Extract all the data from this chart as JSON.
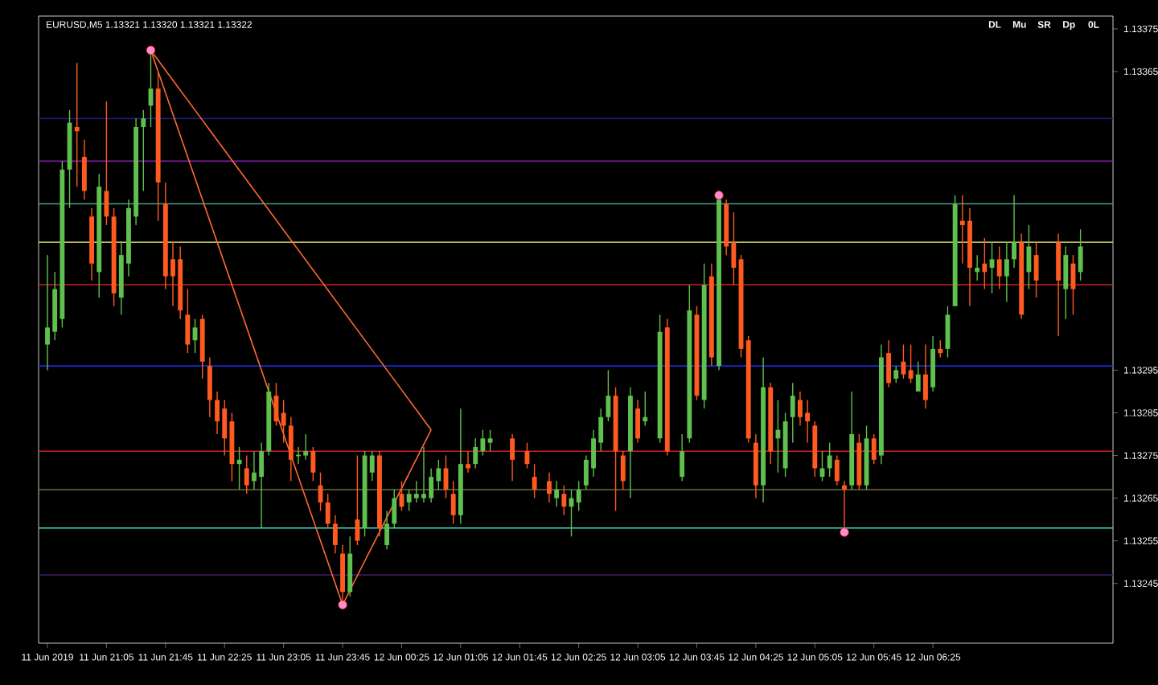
{
  "chart_data": {
    "type": "candlestick",
    "title": "EURUSD,M5  1.13321 1.13320 1.13321 1.13322",
    "x": [
      "2019-06-11T20:25",
      "2019-06-11T20:30",
      "2019-06-11T20:35",
      "2019-06-11T20:40",
      "2019-06-11T20:45",
      "2019-06-11T20:50",
      "2019-06-11T20:55",
      "2019-06-11T21:00",
      "2019-06-11T21:05",
      "2019-06-11T21:10",
      "2019-06-11T21:15",
      "2019-06-11T21:20",
      "2019-06-11T21:25",
      "2019-06-11T21:30",
      "2019-06-11T21:35",
      "2019-06-11T21:40",
      "2019-06-11T21:45",
      "2019-06-11T21:50",
      "2019-06-11T21:55",
      "2019-06-11T22:00",
      "2019-06-11T22:05",
      "2019-06-11T22:10",
      "2019-06-11T22:15",
      "2019-06-11T22:20",
      "2019-06-11T22:25",
      "2019-06-11T22:30",
      "2019-06-11T22:35",
      "2019-06-11T22:40",
      "2019-06-11T22:45",
      "2019-06-11T22:50",
      "2019-06-11T22:55",
      "2019-06-11T23:00",
      "2019-06-11T23:05",
      "2019-06-11T23:10",
      "2019-06-11T23:15",
      "2019-06-11T23:20",
      "2019-06-11T23:25",
      "2019-06-11T23:30",
      "2019-06-11T23:35",
      "2019-06-11T23:40",
      "2019-06-11T23:45",
      "2019-06-11T23:50",
      "2019-06-11T23:55",
      "2019-06-12T00:00",
      "2019-06-12T00:05",
      "2019-06-12T00:10",
      "2019-06-12T00:15",
      "2019-06-12T00:20",
      "2019-06-12T00:25",
      "2019-06-12T00:30",
      "2019-06-12T00:35",
      "2019-06-12T00:40",
      "2019-06-12T00:45",
      "2019-06-12T00:50",
      "2019-06-12T00:55",
      "2019-06-12T01:00",
      "2019-06-12T01:05",
      "2019-06-12T01:10",
      "2019-06-12T01:15",
      "2019-06-12T01:20",
      "2019-06-12T01:25",
      "2019-06-12T01:40",
      "2019-06-12T01:50",
      "2019-06-12T01:55",
      "2019-06-12T02:05",
      "2019-06-12T02:10",
      "2019-06-12T02:15",
      "2019-06-12T02:20",
      "2019-06-12T02:25",
      "2019-06-12T02:30",
      "2019-06-12T02:35",
      "2019-06-12T02:40",
      "2019-06-12T02:45",
      "2019-06-12T02:50",
      "2019-06-12T02:55",
      "2019-06-12T03:00",
      "2019-06-12T03:05",
      "2019-06-12T03:10",
      "2019-06-12T03:20",
      "2019-06-12T03:25",
      "2019-06-12T03:35",
      "2019-06-12T03:40",
      "2019-06-12T03:45",
      "2019-06-12T03:50",
      "2019-06-12T03:55",
      "2019-06-12T04:00",
      "2019-06-12T04:05",
      "2019-06-12T04:10",
      "2019-06-12T04:15",
      "2019-06-12T04:20",
      "2019-06-12T04:25",
      "2019-06-12T04:30",
      "2019-06-12T04:35",
      "2019-06-12T04:40",
      "2019-06-12T04:45",
      "2019-06-12T04:50",
      "2019-06-12T04:55",
      "2019-06-12T05:00",
      "2019-06-12T05:05",
      "2019-06-12T05:10",
      "2019-06-12T05:15",
      "2019-06-12T05:20",
      "2019-06-12T05:25",
      "2019-06-12T05:30",
      "2019-06-12T05:35",
      "2019-06-12T05:40",
      "2019-06-12T05:45",
      "2019-06-12T05:50",
      "2019-06-12T05:55",
      "2019-06-12T06:00",
      "2019-06-12T06:05",
      "2019-06-12T06:10",
      "2019-06-12T06:15",
      "2019-06-12T06:20",
      "2019-06-12T06:25",
      "2019-06-12T06:30",
      "2019-06-12T06:35",
      "2019-06-12T06:40",
      "2019-06-12T06:45",
      "2019-06-12T06:50",
      "2019-06-12T06:55",
      "2019-06-12T07:00",
      "2019-06-12T07:05",
      "2019-06-12T07:10",
      "2019-06-12T07:15",
      "2019-06-12T07:20",
      "2019-06-12T07:25",
      "2019-06-12T07:30",
      "2019-06-12T07:35",
      "2019-06-12T07:50",
      "2019-06-12T07:55",
      "2019-06-12T08:00",
      "2019-06-12T08:05"
    ],
    "ohlc": [
      [
        1.13301,
        1.13322,
        1.13295,
        1.13305
      ],
      [
        1.13304,
        1.13318,
        1.13302,
        1.13314
      ],
      [
        1.13307,
        1.13344,
        1.13305,
        1.13342
      ],
      [
        1.13342,
        1.13356,
        1.13333,
        1.13353
      ],
      [
        1.13352,
        1.13367,
        1.13338,
        1.13351
      ],
      [
        1.13345,
        1.13349,
        1.13335,
        1.13337
      ],
      [
        1.13331,
        1.13333,
        1.13316,
        1.1332
      ],
      [
        1.13318,
        1.13341,
        1.13312,
        1.13338
      ],
      [
        1.13337,
        1.13358,
        1.13329,
        1.13331
      ],
      [
        1.13331,
        1.13333,
        1.1331,
        1.13313
      ],
      [
        1.13312,
        1.13325,
        1.13308,
        1.13322
      ],
      [
        1.1332,
        1.13335,
        1.13317,
        1.13333
      ],
      [
        1.13331,
        1.13354,
        1.13329,
        1.13352
      ],
      [
        1.13352,
        1.13356,
        1.13337,
        1.13354
      ],
      [
        1.13357,
        1.1337,
        1.13352,
        1.13361
      ],
      [
        1.13361,
        1.13365,
        1.1333,
        1.13339
      ],
      [
        1.13334,
        1.13339,
        1.13314,
        1.13317
      ],
      [
        1.13321,
        1.13325,
        1.1331,
        1.13317
      ],
      [
        1.13321,
        1.13324,
        1.13307,
        1.13309
      ],
      [
        1.13308,
        1.13314,
        1.13299,
        1.13301
      ],
      [
        1.13302,
        1.13307,
        1.13299,
        1.13305
      ],
      [
        1.13307,
        1.13308,
        1.13293,
        1.13297
      ],
      [
        1.13296,
        1.13298,
        1.13284,
        1.13288
      ],
      [
        1.13288,
        1.1329,
        1.1328,
        1.13283
      ],
      [
        1.13286,
        1.13288,
        1.13275,
        1.13279
      ],
      [
        1.13283,
        1.13285,
        1.13269,
        1.13273
      ],
      [
        1.13273,
        1.13277,
        1.13267,
        1.13274
      ],
      [
        1.13272,
        1.13275,
        1.13266,
        1.13268
      ],
      [
        1.13269,
        1.13276,
        1.13267,
        1.13271
      ],
      [
        1.1327,
        1.13278,
        1.13258,
        1.13276
      ],
      [
        1.13276,
        1.13292,
        1.13275,
        1.1329
      ],
      [
        1.13289,
        1.13292,
        1.13282,
        1.13283
      ],
      [
        1.13285,
        1.13288,
        1.13278,
        1.13282
      ],
      [
        1.13282,
        1.13284,
        1.13269,
        1.13274
      ],
      [
        1.13275,
        1.13277,
        1.13273,
        1.13275
      ],
      [
        1.13275,
        1.1328,
        1.13274,
        1.13276
      ],
      [
        1.13276,
        1.13277,
        1.13269,
        1.13271
      ],
      [
        1.13268,
        1.13271,
        1.13262,
        1.13264
      ],
      [
        1.13264,
        1.13266,
        1.13258,
        1.13259
      ],
      [
        1.13259,
        1.13261,
        1.13252,
        1.13254
      ],
      [
        1.13252,
        1.13254,
        1.1324,
        1.13243
      ],
      [
        1.13243,
        1.13256,
        1.13242,
        1.13252
      ],
      [
        1.1326,
        1.13275,
        1.13254,
        1.13255
      ],
      [
        1.13258,
        1.13276,
        1.13256,
        1.13275
      ],
      [
        1.13271,
        1.13276,
        1.13269,
        1.13275
      ],
      [
        1.13275,
        1.13276,
        1.13256,
        1.13258
      ],
      [
        1.13254,
        1.13262,
        1.13253,
        1.13259
      ],
      [
        1.13259,
        1.13267,
        1.13258,
        1.13265
      ],
      [
        1.13266,
        1.13269,
        1.13262,
        1.13263
      ],
      [
        1.13264,
        1.13267,
        1.13262,
        1.13266
      ],
      [
        1.13265,
        1.13269,
        1.13264,
        1.13266
      ],
      [
        1.13265,
        1.13277,
        1.13264,
        1.13266
      ],
      [
        1.13265,
        1.13272,
        1.13264,
        1.1327
      ],
      [
        1.13269,
        1.13274,
        1.13267,
        1.13272
      ],
      [
        1.13272,
        1.13275,
        1.13265,
        1.13267
      ],
      [
        1.13266,
        1.13269,
        1.13259,
        1.13261
      ],
      [
        1.13261,
        1.13286,
        1.13259,
        1.13273
      ],
      [
        1.13273,
        1.13276,
        1.13271,
        1.13272
      ],
      [
        1.13273,
        1.13279,
        1.13272,
        1.13277
      ],
      [
        1.13276,
        1.13281,
        1.13275,
        1.13279
      ],
      [
        1.13278,
        1.13281,
        1.13276,
        1.13279
      ],
      [
        1.13279,
        1.1328,
        1.13269,
        1.13274
      ],
      [
        1.13276,
        1.13278,
        1.13272,
        1.13273
      ],
      [
        1.1327,
        1.13273,
        1.13265,
        1.13267
      ],
      [
        1.13269,
        1.13271,
        1.13264,
        1.13266
      ],
      [
        1.13265,
        1.13269,
        1.13263,
        1.13267
      ],
      [
        1.13266,
        1.13268,
        1.13261,
        1.13263
      ],
      [
        1.13263,
        1.13267,
        1.13256,
        1.13265
      ],
      [
        1.13264,
        1.13269,
        1.13262,
        1.13267
      ],
      [
        1.13268,
        1.13275,
        1.13267,
        1.13274
      ],
      [
        1.13272,
        1.13281,
        1.1327,
        1.13279
      ],
      [
        1.13278,
        1.13286,
        1.13276,
        1.13284
      ],
      [
        1.13284,
        1.13295,
        1.13283,
        1.13289
      ],
      [
        1.13289,
        1.13291,
        1.13262,
        1.13276
      ],
      [
        1.13275,
        1.13276,
        1.13267,
        1.13269
      ],
      [
        1.13276,
        1.13291,
        1.13265,
        1.13289
      ],
      [
        1.13286,
        1.13288,
        1.13278,
        1.13279
      ],
      [
        1.13283,
        1.1329,
        1.13282,
        1.13284
      ],
      [
        1.13279,
        1.13308,
        1.13278,
        1.13304
      ],
      [
        1.13305,
        1.13307,
        1.13275,
        1.13276
      ],
      [
        1.1327,
        1.1328,
        1.13269,
        1.13276
      ],
      [
        1.13279,
        1.13315,
        1.13278,
        1.13309
      ],
      [
        1.13308,
        1.1331,
        1.13288,
        1.13289
      ],
      [
        1.13288,
        1.1332,
        1.13286,
        1.13315
      ],
      [
        1.13317,
        1.1332,
        1.13296,
        1.13298
      ],
      [
        1.13296,
        1.13336,
        1.13295,
        1.13335
      ],
      [
        1.13334,
        1.13335,
        1.13322,
        1.13324
      ],
      [
        1.13325,
        1.13332,
        1.13315,
        1.13319
      ],
      [
        1.13321,
        1.13322,
        1.13298,
        1.133
      ],
      [
        1.13302,
        1.13303,
        1.13278,
        1.13279
      ],
      [
        1.13278,
        1.1328,
        1.13265,
        1.13268
      ],
      [
        1.13268,
        1.13298,
        1.13264,
        1.13291
      ],
      [
        1.13291,
        1.13292,
        1.13273,
        1.13276
      ],
      [
        1.13279,
        1.13288,
        1.13271,
        1.13281
      ],
      [
        1.13272,
        1.13285,
        1.1327,
        1.13283
      ],
      [
        1.13284,
        1.13292,
        1.13278,
        1.13289
      ],
      [
        1.13288,
        1.1329,
        1.13282,
        1.13284
      ],
      [
        1.13285,
        1.13288,
        1.13278,
        1.13283
      ],
      [
        1.13282,
        1.13283,
        1.1327,
        1.13272
      ],
      [
        1.1327,
        1.13276,
        1.13269,
        1.13272
      ],
      [
        1.13272,
        1.13278,
        1.1327,
        1.13275
      ],
      [
        1.13274,
        1.13275,
        1.13268,
        1.13269
      ],
      [
        1.13268,
        1.13269,
        1.13257,
        1.13267
      ],
      [
        1.13268,
        1.1329,
        1.13267,
        1.1328
      ],
      [
        1.13278,
        1.1328,
        1.13267,
        1.13268
      ],
      [
        1.13268,
        1.13282,
        1.13267,
        1.13279
      ],
      [
        1.13279,
        1.1328,
        1.13273,
        1.13274
      ],
      [
        1.13275,
        1.13301,
        1.13273,
        1.13298
      ],
      [
        1.13299,
        1.13302,
        1.13291,
        1.13292
      ],
      [
        1.13293,
        1.13296,
        1.13292,
        1.13295
      ],
      [
        1.13297,
        1.13301,
        1.13293,
        1.13294
      ],
      [
        1.13295,
        1.13301,
        1.13292,
        1.13293
      ],
      [
        1.1329,
        1.13297,
        1.1329,
        1.13294
      ],
      [
        1.13294,
        1.13301,
        1.13286,
        1.13288
      ],
      [
        1.13291,
        1.13303,
        1.1329,
        1.133
      ],
      [
        1.133,
        1.13302,
        1.13298,
        1.13299
      ],
      [
        1.133,
        1.1331,
        1.13298,
        1.13308
      ],
      [
        1.1331,
        1.13336,
        1.1331,
        1.13334
      ],
      [
        1.1333,
        1.13336,
        1.1332,
        1.13329
      ],
      [
        1.1333,
        1.13333,
        1.1331,
        1.13319
      ],
      [
        1.13318,
        1.13322,
        1.13316,
        1.13319
      ],
      [
        1.1332,
        1.13326,
        1.13314,
        1.13318
      ],
      [
        1.13319,
        1.13325,
        1.13313,
        1.13321
      ],
      [
        1.13321,
        1.13324,
        1.13314,
        1.13317
      ],
      [
        1.13317,
        1.13325,
        1.13311,
        1.13321
      ],
      [
        1.13321,
        1.13336,
        1.13319,
        1.13325
      ],
      [
        1.13325,
        1.13327,
        1.13307,
        1.13308
      ],
      [
        1.13318,
        1.13329,
        1.13314,
        1.13324
      ],
      [
        1.13322,
        1.13325,
        1.13312,
        1.13316
      ],
      [
        1.13325,
        1.13327,
        1.13303,
        1.13316
      ],
      [
        1.13314,
        1.13324,
        1.13307,
        1.13322
      ],
      [
        1.1332,
        1.13322,
        1.13308,
        1.13314
      ],
      [
        1.13318,
        1.13328,
        1.13316,
        1.13324
      ]
    ],
    "colors": [
      "#5fbf4f",
      "#5fbf4f",
      "#5fbf4f",
      "#5fbf4f",
      "#ff5a1f",
      "#ff5a1f",
      "#ff5a1f",
      "#5fbf4f",
      "#ff5a1f",
      "#ff5a1f",
      "#5fbf4f",
      "#5fbf4f",
      "#5fbf4f",
      "#5fbf4f",
      "#5fbf4f",
      "#ff5a1f",
      "#ff5a1f",
      "#ff5a1f",
      "#ff5a1f",
      "#ff5a1f",
      "#5fbf4f",
      "#ff5a1f",
      "#ff5a1f",
      "#ff5a1f",
      "#ff5a1f",
      "#ff5a1f",
      "#5fbf4f",
      "#ff5a1f",
      "#5fbf4f",
      "#5fbf4f",
      "#5fbf4f",
      "#ff5a1f",
      "#ff5a1f",
      "#ff5a1f",
      "#5fbf4f",
      "#5fbf4f",
      "#ff5a1f",
      "#ff5a1f",
      "#ff5a1f",
      "#ff5a1f",
      "#ff5a1f",
      "#5fbf4f",
      "#ff5a1f",
      "#5fbf4f",
      "#5fbf4f",
      "#ff5a1f",
      "#5fbf4f",
      "#5fbf4f",
      "#ff5a1f",
      "#5fbf4f",
      "#5fbf4f",
      "#5fbf4f",
      "#5fbf4f",
      "#5fbf4f",
      "#ff5a1f",
      "#ff5a1f",
      "#5fbf4f",
      "#ff5a1f",
      "#5fbf4f",
      "#5fbf4f",
      "#5fbf4f",
      "#ff5a1f",
      "#ff5a1f",
      "#ff5a1f",
      "#ff5a1f",
      "#5fbf4f",
      "#ff5a1f",
      "#5fbf4f",
      "#5fbf4f",
      "#5fbf4f",
      "#5fbf4f",
      "#5fbf4f",
      "#5fbf4f",
      "#ff5a1f",
      "#ff5a1f",
      "#5fbf4f",
      "#ff5a1f",
      "#5fbf4f",
      "#5fbf4f",
      "#ff5a1f",
      "#5fbf4f",
      "#5fbf4f",
      "#ff5a1f",
      "#5fbf4f",
      "#ff5a1f",
      "#5fbf4f",
      "#ff5a1f",
      "#ff5a1f",
      "#ff5a1f",
      "#ff5a1f",
      "#ff5a1f",
      "#5fbf4f",
      "#ff5a1f",
      "#5fbf4f",
      "#5fbf4f",
      "#5fbf4f",
      "#ff5a1f",
      "#ff5a1f",
      "#ff5a1f",
      "#5fbf4f",
      "#5fbf4f",
      "#ff5a1f",
      "#ff5a1f",
      "#5fbf4f",
      "#ff5a1f",
      "#5fbf4f",
      "#ff5a1f",
      "#5fbf4f",
      "#ff5a1f",
      "#5fbf4f",
      "#ff5a1f",
      "#ff5a1f",
      "#5fbf4f",
      "#ff5a1f",
      "#5fbf4f",
      "#ff5a1f",
      "#5fbf4f",
      "#5fbf4f",
      "#ff5a1f",
      "#ff5a1f",
      "#5fbf4f",
      "#ff5a1f",
      "#5fbf4f",
      "#ff5a1f",
      "#5fbf4f",
      "#5fbf4f",
      "#ff5a1f",
      "#5fbf4f",
      "#ff5a1f",
      "#ff5a1f",
      "#5fbf4f",
      "#ff5a1f",
      "#5fbf4f"
    ],
    "series": [
      {
        "type": "line",
        "color": "#ff6a33",
        "x": [
          "2019-06-11T21:35",
          "2019-06-11T23:45",
          "2019-06-12T00:45"
        ],
        "values": [
          1.1337,
          1.1324,
          1.13281
        ]
      },
      {
        "type": "line",
        "color": "#ff6a33",
        "x": [
          "2019-06-11T21:35",
          "2019-06-12T00:45"
        ],
        "values": [
          1.1337,
          1.13281
        ]
      },
      {
        "type": "scatter",
        "color": "#ff8ccf",
        "x": [
          "2019-06-11T21:35",
          "2019-06-11T23:45",
          "2019-06-12T04:00",
          "2019-06-12T05:25"
        ],
        "values": [
          1.1337,
          1.1324,
          1.13336,
          1.13257
        ]
      }
    ],
    "xlim": [
      "2019-06-11T20:19",
      "2019-06-12T08:27"
    ],
    "xticks": [
      {
        "value": "2019-06-11T20:25",
        "label": "11 Jun 2019"
      },
      {
        "value": "2019-06-11T21:05",
        "label": "11 Jun 21:05"
      },
      {
        "value": "2019-06-11T21:45",
        "label": "11 Jun 21:45"
      },
      {
        "value": "2019-06-11T22:25",
        "label": "11 Jun 22:25"
      },
      {
        "value": "2019-06-11T23:05",
        "label": "11 Jun 23:05"
      },
      {
        "value": "2019-06-11T23:45",
        "label": "11 Jun 23:45"
      },
      {
        "value": "2019-06-12T00:25",
        "label": "12 Jun 00:25"
      },
      {
        "value": "2019-06-12T01:05",
        "label": "12 Jun 01:05"
      },
      {
        "value": "2019-06-12T01:45",
        "label": "12 Jun 01:45"
      },
      {
        "value": "2019-06-12T02:25",
        "label": "12 Jun 02:25"
      },
      {
        "value": "2019-06-12T03:05",
        "label": "12 Jun 03:05"
      },
      {
        "value": "2019-06-12T03:45",
        "label": "12 Jun 03:45"
      },
      {
        "value": "2019-06-12T04:25",
        "label": "12 Jun 04:25"
      },
      {
        "value": "2019-06-12T05:05",
        "label": "12 Jun 05:05"
      },
      {
        "value": "2019-06-12T05:45",
        "label": "12 Jun 05:45"
      },
      {
        "value": "2019-06-12T06:25",
        "label": "12 Jun 06:25"
      }
    ],
    "ylim": [
      1.13231,
      1.13378
    ],
    "yticks": [
      1.13375,
      1.13365,
      1.13295,
      1.13285,
      1.13275,
      1.13265,
      1.13255,
      1.13245
    ],
    "ref_lines": [
      {
        "axis": "y",
        "value": 1.13354,
        "color": "#1c1c70"
      },
      {
        "axis": "y",
        "value": 1.13344,
        "color": "#7b1fa2"
      },
      {
        "axis": "y",
        "value": 1.13334,
        "color": "#4a9a8a"
      },
      {
        "axis": "y",
        "value": 1.13325,
        "color": "#d4d46a"
      },
      {
        "axis": "y",
        "value": 1.13315,
        "color": "#cc2222"
      },
      {
        "axis": "y",
        "value": 1.13296,
        "color": "#1a2ad8"
      },
      {
        "axis": "y",
        "value": 1.13276,
        "color": "#cc2222"
      },
      {
        "axis": "y",
        "value": 1.13267,
        "color": "#6b6b3a"
      },
      {
        "axis": "y",
        "value": 1.13258,
        "color": "#40e0d0"
      },
      {
        "axis": "y",
        "value": 1.13247,
        "color": "#3a1a5a"
      }
    ],
    "annotations": [
      "DL",
      "Mu",
      "SR",
      "Dp",
      "0L"
    ],
    "grid": false
  }
}
